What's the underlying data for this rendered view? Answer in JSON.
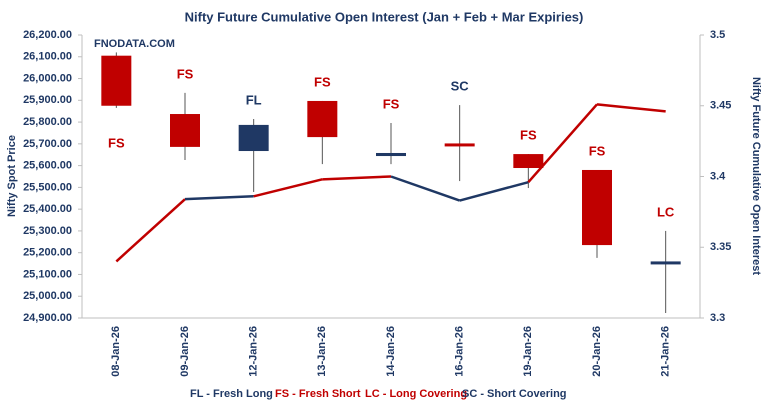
{
  "chart_data": {
    "type": "candlestick",
    "title": "Nifty Future Cumulative Open Interest (Jan  + Feb + Mar Expiries)",
    "watermark": "FNODATA.COM",
    "y_label": "Nifty Spot Price",
    "y2_label": "Nifty Future Cumulative Open Interest",
    "categories": [
      "08-Jan-26",
      "09-Jan-26",
      "12-Jan-26",
      "13-Jan-26",
      "14-Jan-26",
      "16-Jan-26",
      "19-Jan-26",
      "20-Jan-26",
      "21-Jan-26"
    ],
    "candles": [
      {
        "open": 26105,
        "high": 26120,
        "low": 25865,
        "close": 25875,
        "color": "#c00000",
        "label": "FS",
        "label_color": "#c00000",
        "label_position": "below"
      },
      {
        "open": 25837,
        "high": 25934,
        "low": 25626,
        "close": 25686,
        "color": "#c00000",
        "label": "FS",
        "label_color": "#c00000",
        "label_position": "above"
      },
      {
        "open": 25667,
        "high": 25814,
        "low": 25479,
        "close": 25787,
        "color": "#1f3864",
        "label": "FL",
        "label_color": "#1f3864",
        "label_position": "above"
      },
      {
        "open": 25897,
        "high": 25897,
        "low": 25607,
        "close": 25731,
        "color": "#c00000",
        "label": "FS",
        "label_color": "#c00000",
        "label_position": "above"
      },
      {
        "open": 25644,
        "high": 25796,
        "low": 25607,
        "close": 25658,
        "color": "#1f3864",
        "label": "FS",
        "label_color": "#c00000",
        "label_position": "above"
      },
      {
        "open": 25695,
        "high": 25878,
        "low": 25529,
        "close": 25695,
        "color": "#c00000",
        "label": "SC",
        "label_color": "#1f3864",
        "label_position": "above"
      },
      {
        "open": 25653,
        "high": 25653,
        "low": 25497,
        "close": 25589,
        "color": "#c00000",
        "label": "FS",
        "label_color": "#c00000",
        "label_position": "above"
      },
      {
        "open": 25580,
        "high": 25580,
        "low": 25176,
        "close": 25235,
        "color": "#c00000",
        "label": "FS",
        "label_color": "#c00000",
        "label_position": "above"
      },
      {
        "open": 25153,
        "high": 25300,
        "low": 24923,
        "close": 25153,
        "color": "#1f3864",
        "label": "LC",
        "label_color": "#c00000",
        "label_position": "above"
      }
    ],
    "oi": {
      "axis": "y2",
      "values": [
        3.34,
        3.384,
        3.386,
        3.398,
        3.4,
        3.383,
        3.396,
        3.451,
        3.446
      ],
      "segment_colors": [
        "#c00000",
        "#1f3864",
        "#c00000",
        "#c00000",
        "#1f3864",
        "#1f3864",
        "#c00000",
        "#c00000"
      ]
    },
    "ylim": [
      24900,
      26200
    ],
    "yticks": [
      {
        "value": 24900,
        "label": "24,900.00"
      },
      {
        "value": 25000,
        "label": "25,000.00"
      },
      {
        "value": 25100,
        "label": "25,100.00"
      },
      {
        "value": 25200,
        "label": "25,200.00"
      },
      {
        "value": 25300,
        "label": "25,300.00"
      },
      {
        "value": 25400,
        "label": "25,400.00"
      },
      {
        "value": 25500,
        "label": "25,500.00"
      },
      {
        "value": 25600,
        "label": "25,600.00"
      },
      {
        "value": 25700,
        "label": "25,700.00"
      },
      {
        "value": 25800,
        "label": "25,800.00"
      },
      {
        "value": 25900,
        "label": "25,900.00"
      },
      {
        "value": 26000,
        "label": "26,000.00"
      },
      {
        "value": 26100,
        "label": "26,100.00"
      },
      {
        "value": 26200,
        "label": "26,200.00"
      }
    ],
    "y2lim": [
      3.3,
      3.5
    ],
    "y2ticks": [
      3.3,
      3.35,
      3.4,
      3.45,
      3.5
    ],
    "legend": [
      {
        "text": "FL - Fresh Long",
        "color": "#1f3864"
      },
      {
        "text": "FS - Fresh Short",
        "color": "#c00000"
      },
      {
        "text": "LC - Long Covering",
        "color": "#c00000"
      },
      {
        "text": "SC - Short Covering",
        "color": "#1f3864"
      }
    ]
  }
}
